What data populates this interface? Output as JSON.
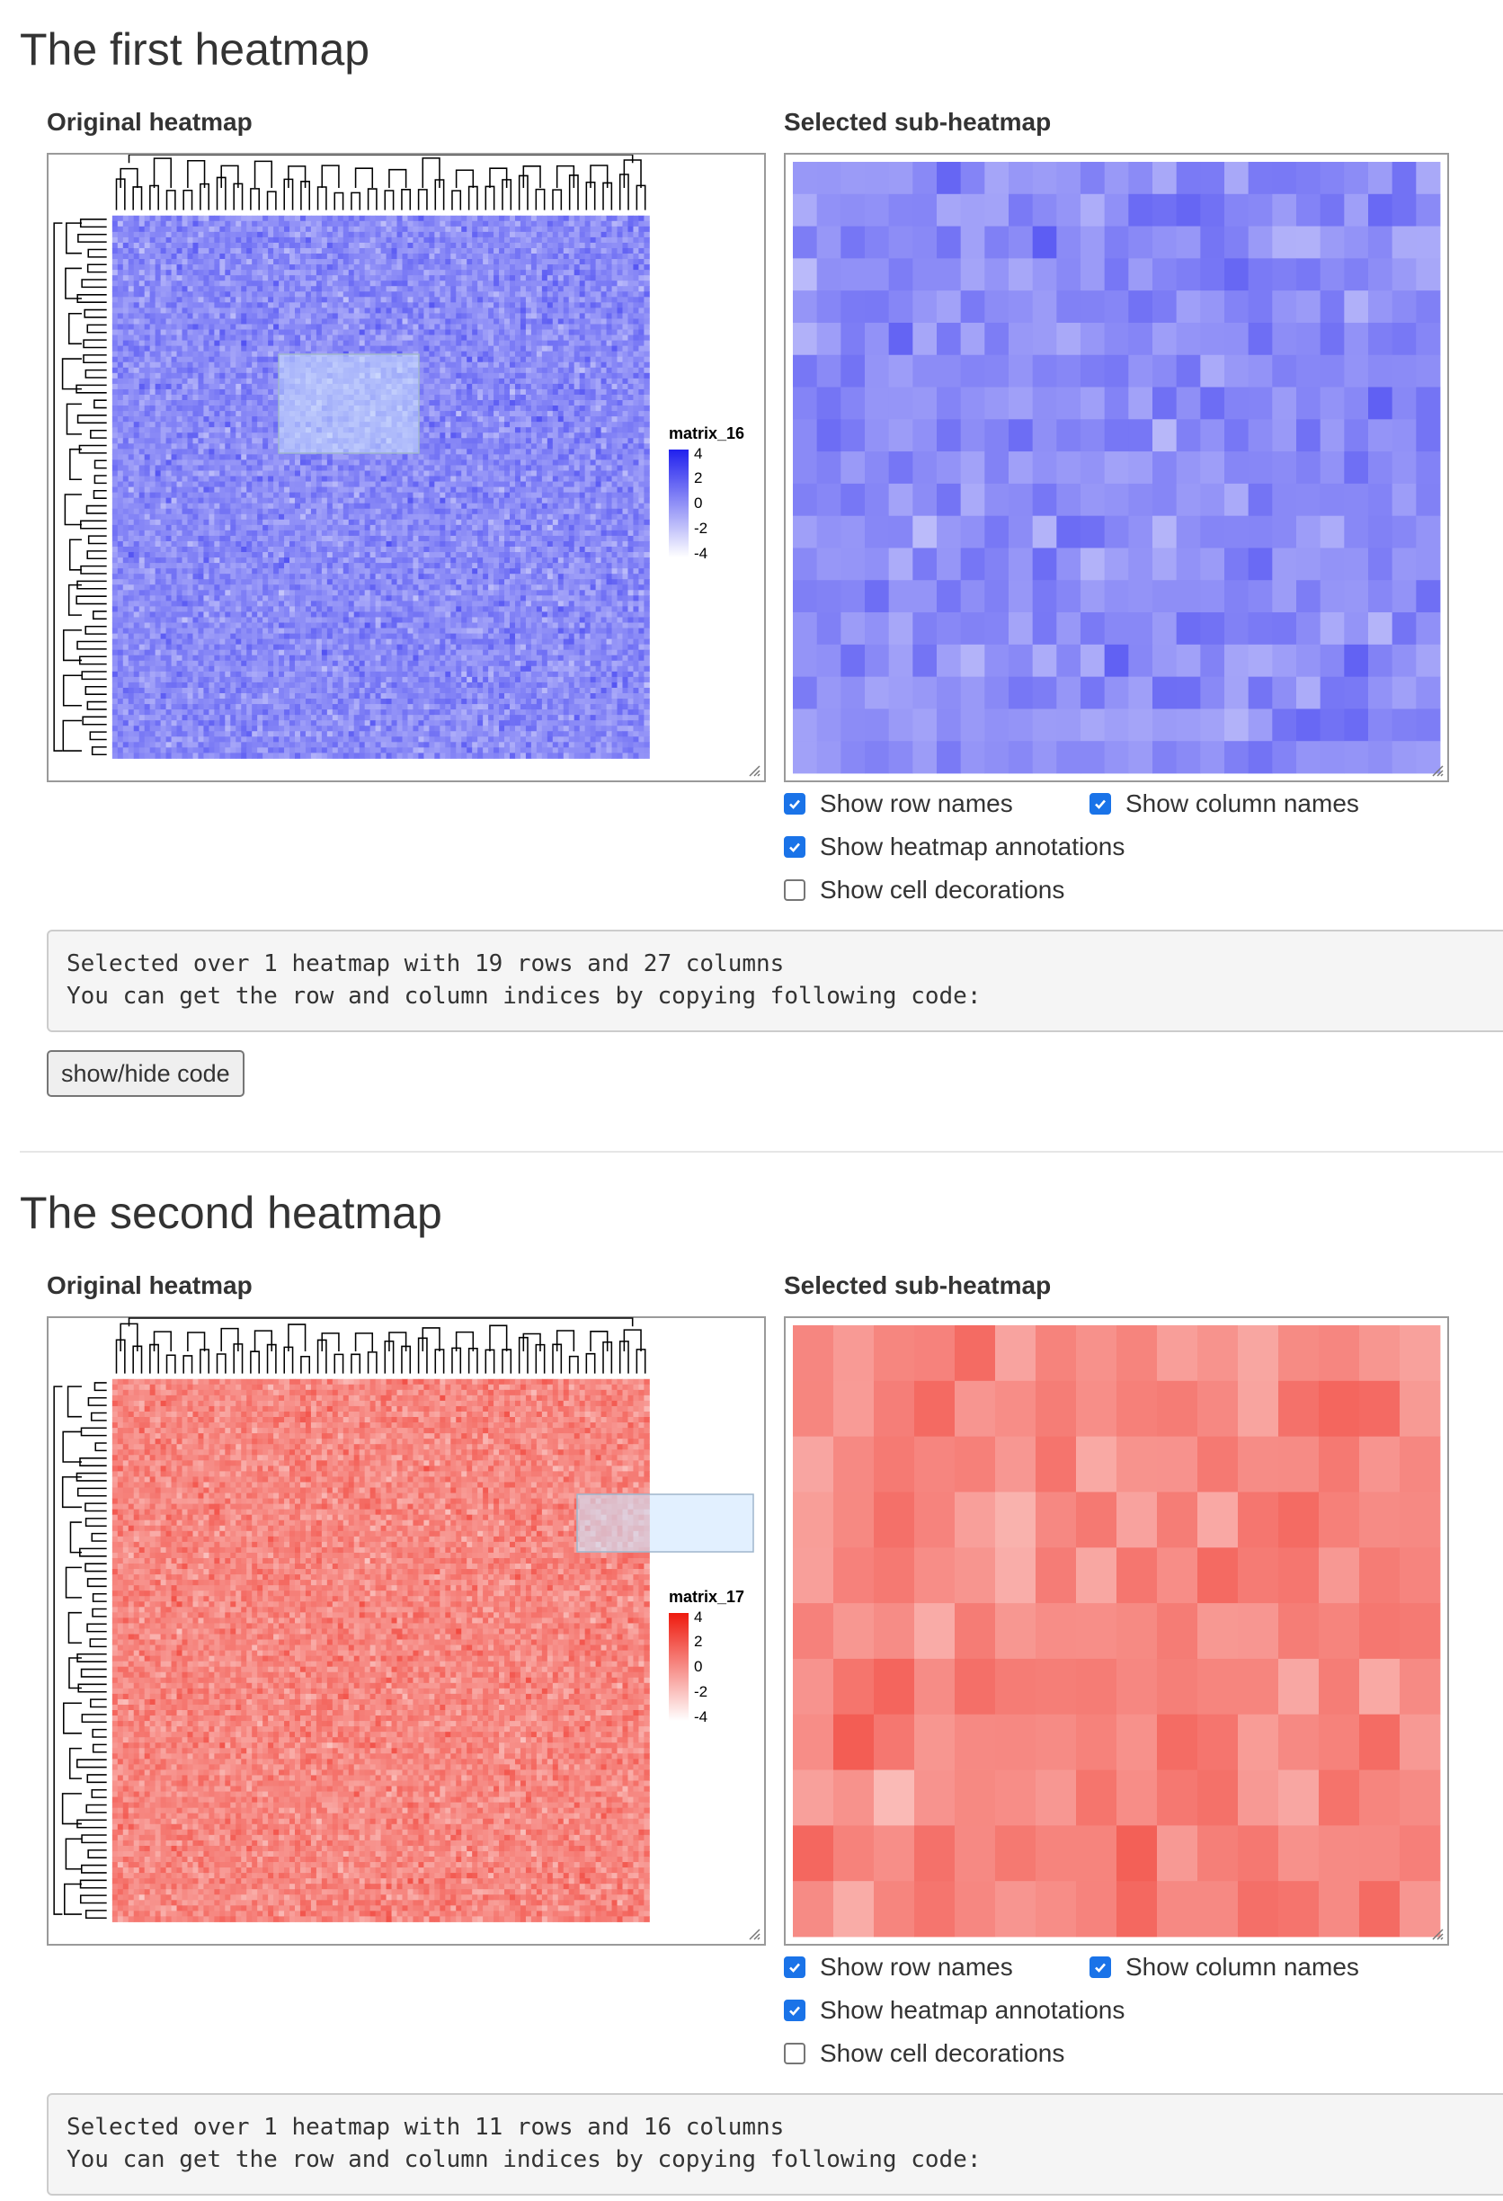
{
  "sections": [
    {
      "title": "The first heatmap",
      "original_label": "Original heatmap",
      "selected_label": "Selected sub-heatmap",
      "legend": {
        "title": "matrix_16",
        "ticks": [
          "4",
          "2",
          "0",
          "-2",
          "-4"
        ]
      },
      "color_scheme": {
        "low": "#ffffff",
        "high": "#2020ee"
      },
      "sub_heatmap_grid": {
        "rows": 19,
        "cols": 27
      },
      "checkboxes": [
        {
          "label": "Show row names",
          "checked": true
        },
        {
          "label": "Show column names",
          "checked": true
        },
        {
          "label": "Show heatmap annotations",
          "checked": true
        },
        {
          "label": "Show cell decorations",
          "checked": false
        }
      ],
      "output_lines": [
        "Selected over 1 heatmap with 19 rows and 27 columns",
        "You can get the row and column indices by copying following code:"
      ],
      "button_label": "show/hide code"
    },
    {
      "title": "The second heatmap",
      "original_label": "Original heatmap",
      "selected_label": "Selected sub-heatmap",
      "legend": {
        "title": "matrix_17",
        "ticks": [
          "4",
          "2",
          "0",
          "-2",
          "-4"
        ]
      },
      "color_scheme": {
        "low": "#ffffff",
        "high": "#ee1a0e"
      },
      "sub_heatmap_grid": {
        "rows": 11,
        "cols": 16
      },
      "checkboxes": [
        {
          "label": "Show row names",
          "checked": true
        },
        {
          "label": "Show column names",
          "checked": true
        },
        {
          "label": "Show heatmap annotations",
          "checked": true
        },
        {
          "label": "Show cell decorations",
          "checked": false
        }
      ],
      "output_lines": [
        "Selected over 1 heatmap with 11 rows and 16 columns",
        "You can get the row and column indices by copying following code:"
      ]
    }
  ]
}
